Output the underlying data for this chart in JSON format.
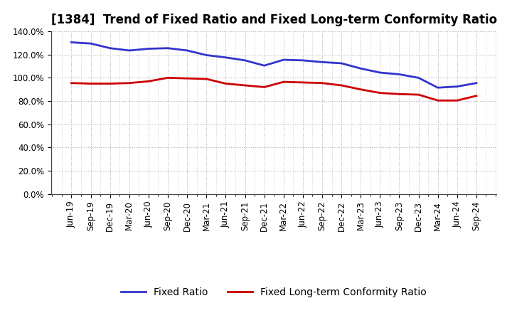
{
  "title": "[1384]  Trend of Fixed Ratio and Fixed Long-term Conformity Ratio",
  "x_labels": [
    "Jun-19",
    "Sep-19",
    "Dec-19",
    "Mar-20",
    "Jun-20",
    "Sep-20",
    "Dec-20",
    "Mar-21",
    "Jun-21",
    "Sep-21",
    "Dec-21",
    "Mar-22",
    "Jun-22",
    "Sep-22",
    "Dec-22",
    "Mar-23",
    "Jun-23",
    "Sep-23",
    "Dec-23",
    "Mar-24",
    "Jun-24",
    "Sep-24"
  ],
  "fixed_ratio": [
    130.5,
    129.5,
    125.5,
    123.5,
    125.0,
    125.5,
    123.5,
    119.5,
    117.5,
    115.0,
    110.5,
    115.5,
    115.0,
    113.5,
    112.5,
    108.0,
    104.5,
    103.0,
    100.0,
    91.5,
    92.5,
    95.5
  ],
  "fixed_lt_ratio": [
    95.5,
    95.0,
    95.0,
    95.5,
    97.0,
    100.0,
    99.5,
    99.0,
    95.0,
    93.5,
    92.0,
    96.5,
    96.0,
    95.5,
    93.5,
    90.0,
    87.0,
    86.0,
    85.5,
    80.5,
    80.5,
    84.5
  ],
  "fixed_ratio_color": "#3333cc",
  "fixed_lt_ratio_color": "#cc0000",
  "background_color": "#ffffff",
  "grid_color": "#aaaaaa",
  "ylim": [
    0,
    140
  ],
  "yticks": [
    0,
    20,
    40,
    60,
    80,
    100,
    120,
    140
  ],
  "ytick_labels": [
    "0.0%",
    "20.0%",
    "40.0%",
    "60.0%",
    "80.0%",
    "100.0%",
    "120.0%",
    "140.0%"
  ],
  "legend_fixed_ratio": "Fixed Ratio",
  "legend_fixed_lt_ratio": "Fixed Long-term Conformity Ratio",
  "title_fontsize": 12,
  "tick_fontsize": 8.5,
  "legend_fontsize": 10,
  "line_width": 2.0
}
